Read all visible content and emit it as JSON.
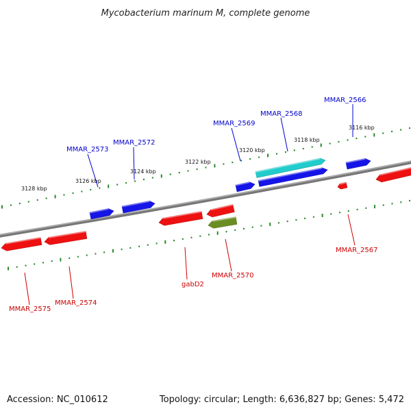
{
  "title": "Mycobacterium marinum M, complete genome",
  "footer": {
    "accession": "Accession: NC_010612",
    "summary": "Topology: circular; Length: 6,636,827 bp; Genes: 5,472"
  },
  "colors": {
    "backbone": "#8a8a8a",
    "ticks": "#2a8a2a",
    "forward_gene": "#1515e8",
    "forward_rna": "#22cccc",
    "reverse_gene": "#ee1111",
    "reverse_other": "#6b8e23",
    "forward_label": "#0000cc",
    "reverse_label": "#cc0000"
  },
  "tick_labels": [
    {
      "id": "3116",
      "text": "3116 kbp"
    },
    {
      "id": "3118",
      "text": "3118 kbp"
    },
    {
      "id": "3120",
      "text": "3120 kbp"
    },
    {
      "id": "3122",
      "text": "3122 kbp"
    },
    {
      "id": "3124",
      "text": "3124 kbp"
    },
    {
      "id": "3126",
      "text": "3126 kbp"
    },
    {
      "id": "3128",
      "text": "3128 kbp"
    }
  ],
  "genes": [
    {
      "id": "MMAR_2566",
      "label": "MMAR_2566",
      "strand": "forward"
    },
    {
      "id": "MMAR_2568",
      "label": "MMAR_2568",
      "strand": "forward"
    },
    {
      "id": "MMAR_2569",
      "label": "MMAR_2569",
      "strand": "forward"
    },
    {
      "id": "MMAR_2572",
      "label": "MMAR_2572",
      "strand": "forward"
    },
    {
      "id": "MMAR_2573",
      "label": "MMAR_2573",
      "strand": "forward"
    },
    {
      "id": "MMAR_2567",
      "label": "MMAR_2567",
      "strand": "reverse"
    },
    {
      "id": "MMAR_2570",
      "label": "MMAR_2570",
      "strand": "reverse"
    },
    {
      "id": "gabD2",
      "label": "gabD2",
      "strand": "reverse"
    },
    {
      "id": "MMAR_2574",
      "label": "MMAR_2574",
      "strand": "reverse"
    },
    {
      "id": "MMAR_2575",
      "label": "MMAR_2575",
      "strand": "reverse"
    }
  ]
}
